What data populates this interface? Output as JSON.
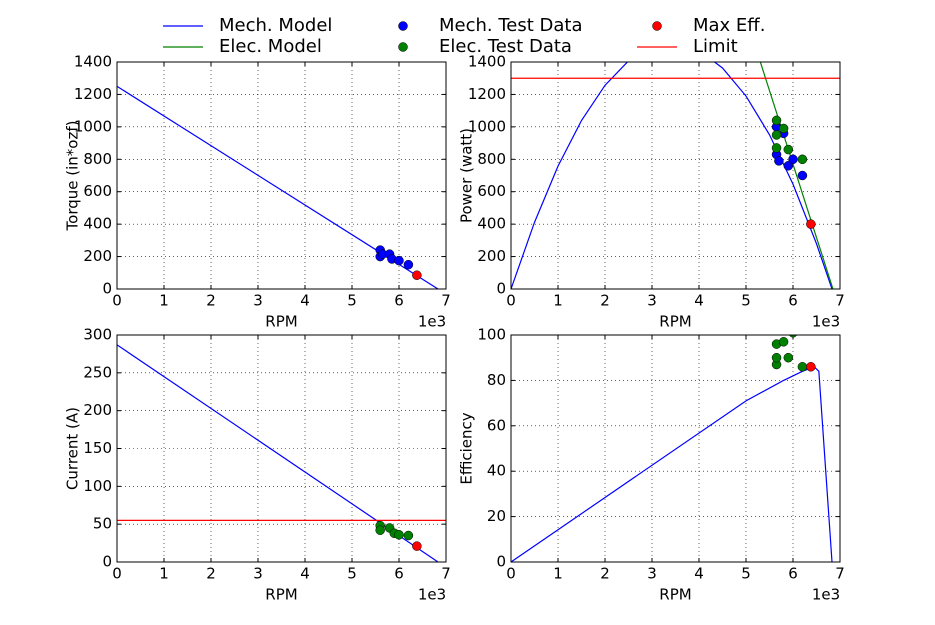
{
  "chart_data": [
    {
      "type": "line",
      "ylabel": "Torque (in*ozf)",
      "xlabel": "RPM",
      "x_offset_text": "1e3",
      "xlim": [
        0,
        7000
      ],
      "xticks": [
        0,
        {
          "value": 1000,
          "label": "1"
        },
        {
          "value": 2000,
          "label": "2"
        },
        {
          "value": 3000,
          "label": "3"
        },
        {
          "value": 4000,
          "label": "4"
        },
        {
          "value": 5000,
          "label": "5"
        },
        {
          "value": 6000,
          "label": "6"
        },
        {
          "value": 7000,
          "label": "7"
        }
      ],
      "ylim": [
        0,
        1400
      ],
      "yticks": [
        0,
        200,
        400,
        600,
        800,
        1000,
        1200,
        1400
      ],
      "grid": true,
      "series": [
        {
          "kind": "line",
          "color": "#0000ff",
          "x": [
            0,
            6830
          ],
          "values": [
            1250,
            0
          ]
        },
        {
          "kind": "scatter",
          "color": "#0000ff",
          "x": [
            5600,
            5600,
            5650,
            5800,
            5850,
            6000,
            6200
          ],
          "values": [
            240,
            200,
            215,
            215,
            185,
            175,
            150
          ]
        },
        {
          "kind": "scatter",
          "color": "#ff0000",
          "x": [
            6380
          ],
          "values": [
            85
          ]
        }
      ]
    },
    {
      "type": "line",
      "ylabel": "Power (watt)",
      "xlabel": "RPM",
      "x_offset_text": "1e3",
      "xlim": [
        0,
        7000
      ],
      "xticks": [
        0,
        {
          "value": 1000,
          "label": "1"
        },
        {
          "value": 2000,
          "label": "2"
        },
        {
          "value": 3000,
          "label": "3"
        },
        {
          "value": 4000,
          "label": "4"
        },
        {
          "value": 5000,
          "label": "5"
        },
        {
          "value": 6000,
          "label": "6"
        },
        {
          "value": 7000,
          "label": "7"
        }
      ],
      "ylim": [
        0,
        1400
      ],
      "yticks": [
        0,
        200,
        400,
        600,
        800,
        1000,
        1200,
        1400
      ],
      "grid": true,
      "series": [
        {
          "name": "Mech. Model",
          "kind": "line",
          "color": "#0000ff",
          "x": [
            0,
            500,
            1000,
            1500,
            2000,
            2500,
            3000,
            3500,
            4000,
            4500,
            5000,
            5500,
            6000,
            6500,
            6830
          ],
          "values": [
            0,
            411,
            758,
            1039,
            1256,
            1407,
            1494,
            1515,
            1472,
            1363,
            1190,
            951,
            647,
            279,
            0
          ]
        },
        {
          "name": "Elec. Model",
          "kind": "line",
          "color": "#008000",
          "x": [
            5250,
            6850
          ],
          "values": [
            1450,
            0
          ]
        },
        {
          "name": "Mech. Test Data",
          "kind": "scatter",
          "color": "#0000ff",
          "x": [
            5650,
            5650,
            5700,
            5800,
            5900,
            6000,
            6200
          ],
          "values": [
            1000,
            830,
            790,
            960,
            760,
            800,
            700
          ]
        },
        {
          "name": "Elec. Test Data",
          "kind": "scatter",
          "color": "#008000",
          "x": [
            5650,
            5650,
            5650,
            5800,
            5900,
            6200
          ],
          "values": [
            1040,
            950,
            870,
            990,
            860,
            800
          ]
        },
        {
          "name": "Max Eff.",
          "kind": "scatter",
          "color": "#ff0000",
          "x": [
            6380
          ],
          "values": [
            400
          ]
        },
        {
          "name": "Limit",
          "kind": "line",
          "color": "#ff0000",
          "x": [
            0,
            7000
          ],
          "values": [
            1300,
            1300
          ]
        }
      ]
    },
    {
      "type": "line",
      "ylabel": "Current (A)",
      "xlabel": "RPM",
      "x_offset_text": "1e3",
      "xlim": [
        0,
        7000
      ],
      "xticks": [
        0,
        {
          "value": 1000,
          "label": "1"
        },
        {
          "value": 2000,
          "label": "2"
        },
        {
          "value": 3000,
          "label": "3"
        },
        {
          "value": 4000,
          "label": "4"
        },
        {
          "value": 5000,
          "label": "5"
        },
        {
          "value": 6000,
          "label": "6"
        },
        {
          "value": 7000,
          "label": "7"
        }
      ],
      "ylim": [
        0,
        300
      ],
      "yticks": [
        0,
        50,
        100,
        150,
        200,
        250,
        300
      ],
      "grid": true,
      "series": [
        {
          "kind": "line",
          "color": "#0000ff",
          "x": [
            0,
            6830
          ],
          "values": [
            287,
            0
          ]
        },
        {
          "kind": "line",
          "color": "#ff0000",
          "x": [
            0,
            7000
          ],
          "values": [
            55,
            55
          ]
        },
        {
          "kind": "scatter",
          "color": "#008000",
          "x": [
            5600,
            5600,
            5800,
            5900,
            6000,
            6200
          ],
          "values": [
            48,
            42,
            45,
            38,
            36,
            35
          ]
        },
        {
          "kind": "scatter",
          "color": "#ff0000",
          "x": [
            6380
          ],
          "values": [
            21
          ]
        }
      ]
    },
    {
      "type": "line",
      "ylabel": "Efficiency",
      "xlabel": "RPM",
      "x_offset_text": "1e3",
      "xlim": [
        0,
        7000
      ],
      "xticks": [
        0,
        {
          "value": 1000,
          "label": "1"
        },
        {
          "value": 2000,
          "label": "2"
        },
        {
          "value": 3000,
          "label": "3"
        },
        {
          "value": 4000,
          "label": "4"
        },
        {
          "value": 5000,
          "label": "5"
        },
        {
          "value": 6000,
          "label": "6"
        },
        {
          "value": 7000,
          "label": "7"
        }
      ],
      "ylim": [
        0,
        100
      ],
      "yticks": [
        0,
        20,
        40,
        60,
        80,
        100
      ],
      "grid": true,
      "series": [
        {
          "kind": "line",
          "color": "#0000ff",
          "x": [
            0,
            5000,
            5800,
            6200,
            6450,
            6550,
            6830
          ],
          "values": [
            0,
            71,
            80,
            84,
            86,
            84,
            0
          ]
        },
        {
          "kind": "scatter",
          "color": "#008000",
          "x": [
            5650,
            5650,
            5650,
            5800,
            5900,
            6000,
            6200
          ],
          "values": [
            87,
            90,
            96,
            97,
            90,
            101,
            86
          ]
        },
        {
          "kind": "scatter",
          "color": "#ff0000",
          "x": [
            6380
          ],
          "values": [
            86
          ]
        }
      ]
    }
  ]
}
